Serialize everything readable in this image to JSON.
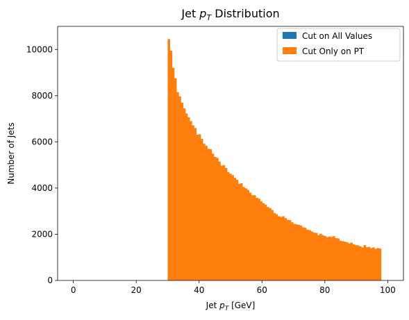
{
  "chart_data": {
    "type": "bar",
    "title": "Jet p_T Distribution",
    "title_parts": {
      "prefix": "Jet ",
      "math_main": "p",
      "math_sub": "T",
      "suffix": " Distribution"
    },
    "xlabel": "Jet p_T [GeV]",
    "xlabel_parts": {
      "prefix": "Jet ",
      "math_main": "p",
      "math_sub": "T",
      "suffix": " [GeV]"
    },
    "ylabel": "Number of Jets",
    "xlim": [
      -5,
      105
    ],
    "ylim": [
      0,
      11000
    ],
    "xticks": [
      0,
      20,
      40,
      60,
      80,
      100
    ],
    "yticks": [
      0,
      2000,
      4000,
      6000,
      8000,
      10000
    ],
    "legend_position": "top-right",
    "grid": false,
    "bin_width": 0.7,
    "bin_start": 30,
    "colors": {
      "cut_all": "#1f77b4",
      "cut_pt": "#ff7f0e"
    },
    "series": [
      {
        "name": "Cut on All Values",
        "color": "#1f77b4",
        "values": []
      },
      {
        "name": "Cut Only on PT",
        "color": "#ff7f0e",
        "values": [
          10450,
          9950,
          9200,
          8750,
          8150,
          7970,
          7700,
          7450,
          7230,
          7060,
          6900,
          6720,
          6600,
          6310,
          6330,
          6130,
          5920,
          5830,
          5700,
          5680,
          5490,
          5350,
          5310,
          5150,
          4970,
          4990,
          4870,
          4690,
          4620,
          4560,
          4440,
          4360,
          4180,
          4210,
          4050,
          3990,
          3920,
          3800,
          3690,
          3690,
          3580,
          3540,
          3420,
          3340,
          3280,
          3180,
          3130,
          3050,
          2920,
          2870,
          2780,
          2750,
          2780,
          2700,
          2620,
          2610,
          2520,
          2450,
          2430,
          2410,
          2380,
          2300,
          2280,
          2200,
          2180,
          2120,
          2070,
          2060,
          1960,
          2020,
          1960,
          1920,
          1870,
          1900,
          1880,
          1920,
          1830,
          1820,
          1720,
          1700,
          1680,
          1650,
          1600,
          1640,
          1560,
          1530,
          1520,
          1480,
          1430,
          1530,
          1440,
          1450,
          1400,
          1430,
          1370,
          1400,
          1380
        ]
      }
    ]
  }
}
